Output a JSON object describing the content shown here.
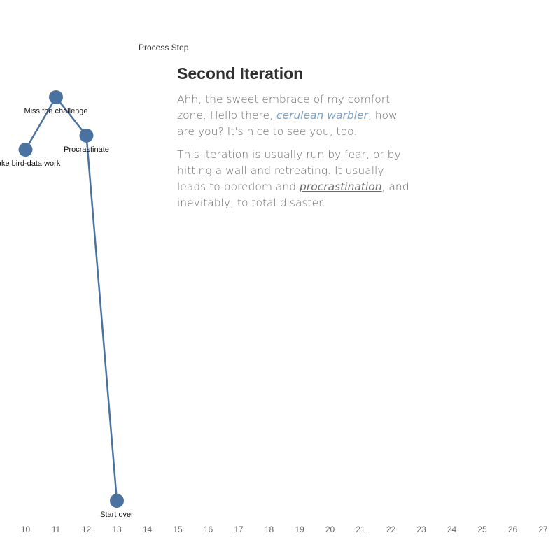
{
  "chart_data": {
    "type": "line",
    "title": "",
    "xlabel": "",
    "ylabel": "Process Step",
    "xlim": [
      10,
      27
    ],
    "ticks": [
      "10",
      "11",
      "12",
      "13",
      "14",
      "15",
      "16",
      "17",
      "18",
      "19",
      "20",
      "21",
      "22",
      "23",
      "24",
      "25",
      "26",
      "27"
    ],
    "series": [
      {
        "color": "#4a72a0",
        "points": [
          {
            "x": 10,
            "y": 0.87,
            "label": "make bird-data work"
          },
          {
            "x": 11,
            "y": 1.0,
            "label": "Miss the challenge"
          },
          {
            "x": 12,
            "y": 0.905,
            "label": "Procrastinate"
          },
          {
            "x": 13,
            "y": 0.0,
            "label": "Start over"
          }
        ]
      }
    ],
    "grid": false
  },
  "story": {
    "heading": "Second Iteration",
    "p1_a": "Ahh, the sweet embrace of my comfort zone. Hello there, ",
    "p1_highlight": "cerulean warbler",
    "p1_b": ", how are you? It's nice to see you, too.",
    "p2_a": "This iteration is usually run by fear, or by hitting a wall and retreating. It usually leads to boredom and ",
    "p2_underline": "procrastination",
    "p2_b": ", and inevitably, to total disaster.",
    "highlight_color": "#7aa3c8"
  }
}
